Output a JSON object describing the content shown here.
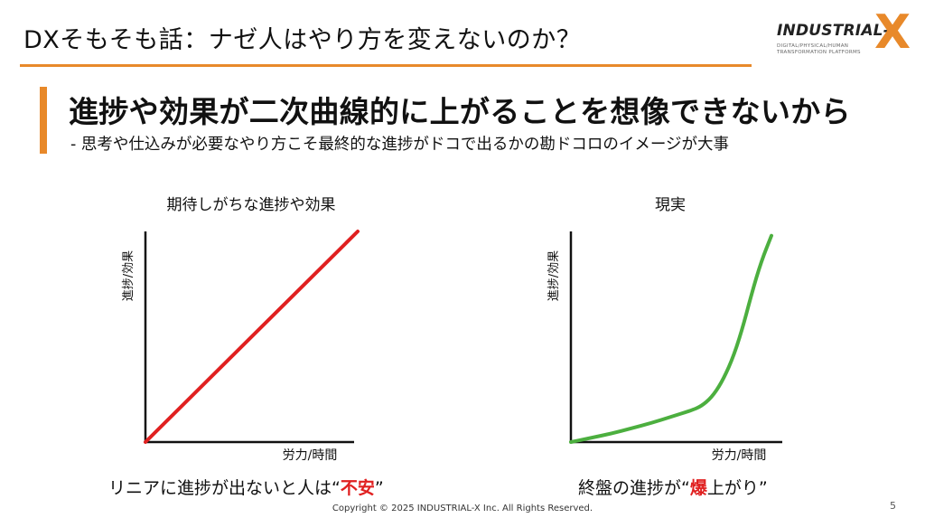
{
  "slide": {
    "title": "DXそもそも話：ナゼ人はやり方を変えないのか？",
    "headline": "進捗や効果が二次曲線的に上がることを想像できないから",
    "subline": "- 思考や仕込みが必要なやり方こそ最終的な進捗がドコで出るかの勘ドコロのイメージが大事",
    "copyright": "Copyright © 2025 INDUSTRIAL-X Inc. All Rights Reserved.",
    "page_number": "5"
  },
  "logo": {
    "word": "INDUSTRIAL-",
    "x": "X",
    "tagline_1": "DIGITAL/PHYSICAL/HUMAN",
    "tagline_2": "TRANSFORMATION PLATFORMS",
    "color": "#e8892a"
  },
  "captions": {
    "left_prefix": "リニアに進捗が出ないと人は“",
    "left_emph": "不安",
    "left_suffix": "”",
    "right_prefix": "終盤の進捗が“",
    "right_emph": "爆",
    "right_suffix": "上がり”",
    "emph_color": "#e02020"
  },
  "colors": {
    "accent": "#e8892a",
    "linear_line": "#e02020",
    "curve_line": "#4caf3f"
  },
  "chart_data": [
    {
      "type": "line",
      "title": "期待しがちな進捗や効果",
      "xlabel": "労力/時間",
      "ylabel": "進捗/効果",
      "xlim": [
        0,
        1
      ],
      "ylim": [
        0,
        1
      ],
      "grid": false,
      "series": [
        {
          "x": [
            0,
            1
          ],
          "y": [
            0,
            1
          ]
        }
      ]
    },
    {
      "type": "line",
      "title": "現実",
      "xlabel": "労力/時間",
      "ylabel": "進捗/効果",
      "xlim": [
        0,
        1
      ],
      "ylim": [
        0,
        1
      ],
      "grid": false,
      "series": [
        {
          "x": [
            0,
            0.1,
            0.2,
            0.3,
            0.4,
            0.5,
            0.6,
            0.65,
            0.7,
            0.75,
            0.8,
            0.85,
            0.9,
            0.95,
            1.0
          ],
          "y": [
            0,
            0.02,
            0.04,
            0.065,
            0.09,
            0.12,
            0.15,
            0.17,
            0.21,
            0.28,
            0.38,
            0.52,
            0.7,
            0.86,
            0.98
          ]
        }
      ]
    }
  ]
}
